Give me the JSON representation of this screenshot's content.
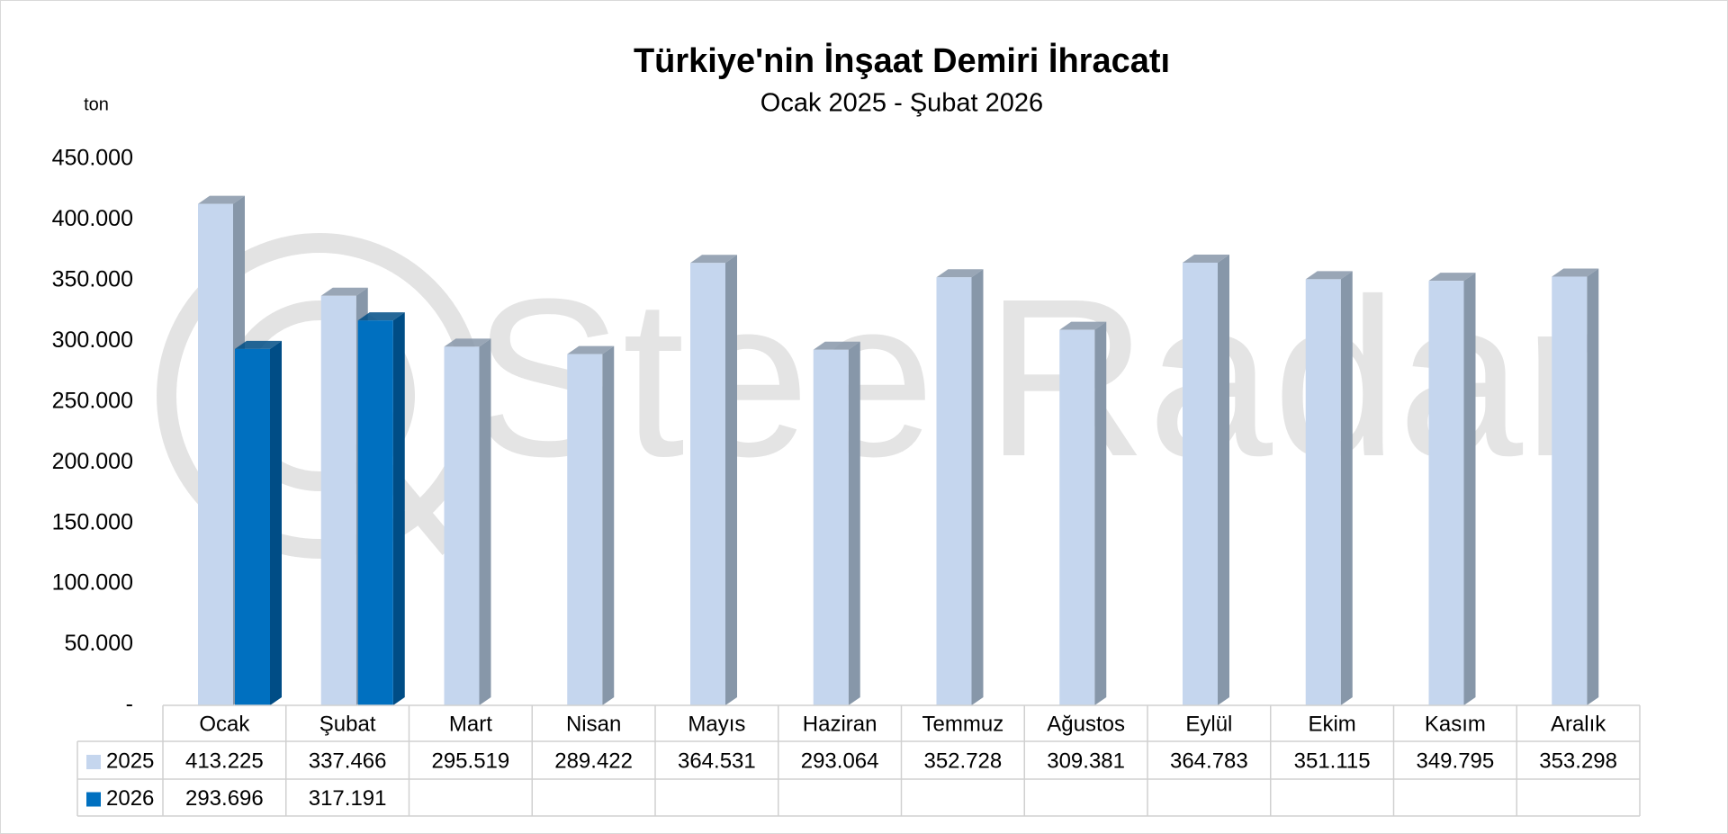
{
  "chart_data": {
    "type": "bar",
    "title": "Türkiye'nin İnşaat Demiri İhracatı",
    "subtitle": "Ocak 2025 - Şubat 2026",
    "y_axis_label": "ton",
    "watermark": "SteelRadar",
    "categories": [
      "Ocak",
      "Şubat",
      "Mart",
      "Nisan",
      "Mayıs",
      "Haziran",
      "Temmuz",
      "Ağustos",
      "Eylül",
      "Ekim",
      "Kasım",
      "Aralık"
    ],
    "series": [
      {
        "name": "2025",
        "color": "#c5d6ee",
        "side_color": "#8797a9",
        "values": [
          413225,
          337466,
          295519,
          289422,
          364531,
          293064,
          352728,
          309381,
          364783,
          351115,
          349795,
          353298
        ],
        "value_labels": [
          "413.225",
          "337.466",
          "295.519",
          "289.422",
          "364.531",
          "293.064",
          "352.728",
          "309.381",
          "364.783",
          "351.115",
          "349.795",
          "353.298"
        ]
      },
      {
        "name": "2026",
        "color": "#0070c0",
        "side_color": "#004d86",
        "values": [
          293696,
          317191,
          null,
          null,
          null,
          null,
          null,
          null,
          null,
          null,
          null,
          null
        ],
        "value_labels": [
          "293.696",
          "317.191",
          null,
          null,
          null,
          null,
          null,
          null,
          null,
          null,
          null,
          null
        ]
      }
    ],
    "ylim": [
      0,
      450000
    ],
    "yticks": [
      {
        "value": 0,
        "label": "-"
      },
      {
        "value": 50000,
        "label": "50.000"
      },
      {
        "value": 100000,
        "label": "100.000"
      },
      {
        "value": 150000,
        "label": "150.000"
      },
      {
        "value": 200000,
        "label": "200.000"
      },
      {
        "value": 250000,
        "label": "250.000"
      },
      {
        "value": 300000,
        "label": "300.000"
      },
      {
        "value": 350000,
        "label": "350.000"
      },
      {
        "value": 400000,
        "label": "400.000"
      },
      {
        "value": 450000,
        "label": "450.000"
      }
    ],
    "grid": false,
    "data_table": true
  }
}
